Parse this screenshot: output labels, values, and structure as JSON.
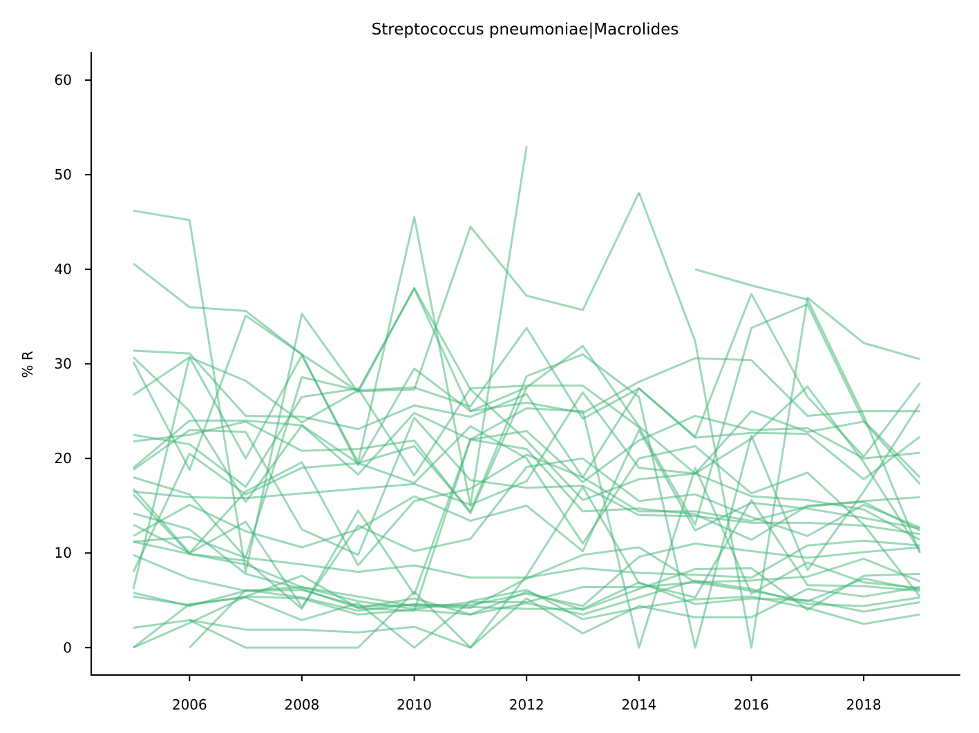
{
  "chart_data": {
    "type": "line",
    "title": "Streptococcus pneumoniae|Macrolides",
    "xlabel": "",
    "ylabel": "% R",
    "xlim": [
      2004.25,
      2019.72
    ],
    "ylim": [
      -2.9,
      63.0
    ],
    "xticks": [
      "2006",
      "2008",
      "2010",
      "2012",
      "2014",
      "2016",
      "2018"
    ],
    "yticks": [
      "0",
      "10",
      "20",
      "30",
      "40",
      "50",
      "60"
    ],
    "grid": false,
    "legend": "none",
    "line_color": "#3cb371",
    "line_alpha": 0.5,
    "series": [
      {
        "x": [
          2005,
          2006,
          2007,
          2008,
          2009,
          2010,
          2011,
          2012
        ],
        "values": [
          46.2,
          45.2,
          8.0,
          35.3,
          27.0,
          38.0,
          25.0,
          27.5
        ]
      },
      {
        "x": [
          2005,
          2006,
          2007,
          2008,
          2009,
          2010,
          2011,
          2012
        ],
        "values": [
          6.2,
          30.7,
          20.0,
          30.9,
          19.6,
          45.5,
          15.0,
          53.0
        ]
      },
      {
        "x": [
          2005,
          2006,
          2007,
          2008,
          2009,
          2010,
          2011,
          2012,
          2013,
          2014
        ],
        "values": [
          40.6,
          36.0,
          35.6,
          31.0,
          27.1,
          27.3,
          44.5,
          37.2,
          35.7,
          48.1
        ]
      },
      {
        "x": [
          2014,
          2015,
          2016,
          2017,
          2018,
          2019
        ],
        "values": [
          48.1,
          32.4,
          0.0,
          37.0,
          32.2,
          30.5
        ]
      },
      {
        "x": [
          2015,
          2016,
          2017,
          2018,
          2019
        ],
        "values": [
          40.0,
          38.3,
          36.8,
          24.5,
          10.0
        ]
      },
      {
        "x": [
          2005,
          2006,
          2007,
          2008,
          2009,
          2010,
          2011,
          2012,
          2013,
          2014,
          2015,
          2016,
          2017,
          2018,
          2019
        ],
        "values": [
          31.4,
          31.1,
          24.5,
          24.4,
          23.1,
          25.6,
          24.4,
          26.8,
          18.0,
          27.4,
          22.2,
          22.7,
          22.6,
          17.8,
          22.3
        ]
      },
      {
        "x": [
          2005,
          2006,
          2007,
          2008,
          2009,
          2010,
          2011,
          2012,
          2013,
          2014,
          2015,
          2016,
          2017,
          2018,
          2019
        ],
        "values": [
          30.2,
          18.8,
          35.1,
          31.0,
          19.3,
          29.5,
          25.0,
          25.9,
          24.8,
          28.1,
          30.6,
          30.4,
          24.5,
          25.0,
          25.0
        ]
      },
      {
        "x": [
          2005,
          2006,
          2007,
          2008,
          2009,
          2010,
          2011,
          2012,
          2013,
          2014,
          2015,
          2016,
          2017,
          2018,
          2019
        ],
        "values": [
          26.7,
          30.7,
          28.2,
          23.8,
          27.2,
          27.5,
          25.5,
          33.8,
          24.2,
          27.4,
          22.3,
          37.4,
          26.5,
          20.2,
          28.0
        ]
      },
      {
        "x": [
          2005,
          2006,
          2007,
          2008,
          2009,
          2010,
          2011,
          2012,
          2013,
          2014,
          2015,
          2016,
          2017,
          2018,
          2019
        ],
        "values": [
          22.5,
          21.5,
          17.0,
          26.5,
          27.4,
          18.2,
          27.4,
          27.7,
          27.7,
          23.3,
          13.0,
          33.8,
          36.3,
          24.0,
          18.0
        ]
      },
      {
        "x": [
          2005,
          2006,
          2007,
          2008,
          2009,
          2010,
          2011,
          2012,
          2013,
          2014,
          2015,
          2016,
          2017,
          2018,
          2019
        ],
        "values": [
          21.8,
          22.5,
          23.9,
          20.8,
          21.0,
          21.9,
          14.2,
          27.5,
          31.9,
          23.4,
          18.4,
          25.0,
          22.8,
          23.9,
          17.3
        ]
      },
      {
        "x": [
          2005,
          2006,
          2007,
          2008,
          2009,
          2010,
          2011,
          2012,
          2013,
          2014,
          2015,
          2016,
          2017,
          2018,
          2019
        ],
        "values": [
          19.0,
          24.0,
          24.0,
          23.5,
          18.3,
          24.8,
          22.0,
          22.9,
          17.5,
          21.9,
          24.5,
          23.0,
          23.2,
          20.0,
          20.6
        ]
      },
      {
        "x": [
          2005,
          2006,
          2007,
          2008,
          2009,
          2010,
          2011,
          2012,
          2013,
          2014,
          2015,
          2016,
          2017,
          2018,
          2019
        ],
        "values": [
          18.8,
          23.0,
          22.8,
          12.5,
          9.8,
          24.3,
          17.7,
          16.9,
          17.1,
          14.0,
          13.9,
          13.2,
          13.2,
          12.9,
          12.0
        ]
      },
      {
        "x": [
          2005,
          2006,
          2007,
          2008,
          2009,
          2010,
          2011,
          2012,
          2013,
          2014,
          2015,
          2016,
          2017,
          2018,
          2019
        ],
        "values": [
          18.0,
          16.2,
          9.5,
          28.6,
          27.2,
          38.0,
          27.3,
          21.9,
          15.6,
          17.8,
          18.4,
          22.1,
          27.6,
          19.6,
          10.2
        ]
      },
      {
        "x": [
          2005,
          2006,
          2007,
          2008,
          2009,
          2010,
          2011,
          2012,
          2013,
          2014,
          2015,
          2016,
          2017,
          2018,
          2019
        ],
        "values": [
          16.8,
          10.0,
          16.5,
          19.6,
          8.7,
          15.5,
          16.8,
          20.4,
          18.0,
          14.4,
          14.4,
          13.4,
          14.9,
          15.5,
          15.9
        ]
      },
      {
        "x": [
          2005,
          2006,
          2007,
          2008,
          2009,
          2010,
          2011,
          2012,
          2013,
          2014,
          2015,
          2016,
          2017,
          2018,
          2019
        ],
        "values": [
          16.5,
          15.9,
          15.8,
          16.3,
          16.8,
          17.3,
          15.1,
          17.6,
          27.0,
          19.0,
          18.4,
          16.0,
          15.6,
          14.6,
          11.4
        ]
      },
      {
        "x": [
          2005,
          2006,
          2007,
          2008,
          2009,
          2010,
          2011,
          2012,
          2013,
          2014,
          2015,
          2016,
          2017,
          2018,
          2019
        ],
        "values": [
          14.2,
          12.5,
          7.8,
          6.2,
          4.2,
          3.9,
          22.0,
          21.0,
          14.4,
          14.7,
          14.1,
          11.4,
          15.0,
          15.4,
          12.4
        ]
      },
      {
        "x": [
          2005,
          2006,
          2007,
          2008,
          2009,
          2010,
          2011,
          2012,
          2013,
          2014,
          2015,
          2016,
          2017,
          2018,
          2019
        ],
        "values": [
          13.0,
          10.0,
          13.3,
          4.3,
          12.9,
          10.2,
          11.5,
          19.1,
          20.0,
          15.5,
          16.2,
          13.8,
          11.8,
          15.1,
          12.7
        ]
      },
      {
        "x": [
          2005,
          2006,
          2007,
          2008,
          2009,
          2010,
          2011,
          2012,
          2013,
          2014,
          2015,
          2016,
          2017,
          2018,
          2019
        ],
        "values": [
          11.8,
          15.1,
          12.3,
          10.6,
          12.5,
          16.0,
          13.4,
          15.0,
          10.2,
          23.0,
          12.4,
          15.3,
          14.7,
          13.7,
          12.6
        ]
      },
      {
        "x": [
          2005,
          2006,
          2007,
          2008,
          2009,
          2010,
          2011,
          2012,
          2013,
          2014,
          2015,
          2016,
          2017,
          2018,
          2019
        ],
        "values": [
          11.2,
          11.7,
          9.5,
          8.8,
          8.0,
          8.7,
          7.4,
          7.4,
          8.4,
          7.9,
          7.7,
          7.4,
          10.8,
          11.3,
          10.8
        ]
      },
      {
        "x": [
          2005,
          2006,
          2007,
          2008,
          2009,
          2010,
          2011,
          2012,
          2013,
          2014,
          2015,
          2016,
          2017,
          2018,
          2019
        ],
        "values": [
          9.8,
          7.3,
          6.0,
          6.1,
          4.4,
          4.5,
          4.5,
          5.7,
          4.4,
          9.6,
          11.0,
          10.2,
          9.5,
          10.1,
          10.6
        ]
      },
      {
        "x": [
          2005,
          2006,
          2007,
          2008,
          2009,
          2010,
          2011,
          2012,
          2013,
          2014,
          2015,
          2016,
          2017,
          2018,
          2019
        ],
        "values": [
          11.2,
          9.9,
          8.8,
          6.4,
          4.9,
          4.1,
          4.8,
          4.8,
          6.4,
          6.4,
          6.9,
          7.1,
          7.5,
          9.4,
          7.0
        ]
      },
      {
        "x": [
          2005,
          2006,
          2007,
          2008,
          2009,
          2010,
          2011,
          2012,
          2013,
          2014,
          2015,
          2016,
          2017,
          2018,
          2019
        ],
        "values": [
          5.8,
          4.4,
          6.0,
          6.4,
          5.4,
          4.4,
          4.2,
          7.3,
          9.8,
          10.6,
          6.9,
          6.0,
          4.9,
          7.3,
          6.1
        ]
      },
      {
        "x": [
          2005,
          2006,
          2007,
          2008,
          2009,
          2010,
          2011,
          2012,
          2013,
          2014,
          2015,
          2016,
          2017,
          2018,
          2019
        ],
        "values": [
          5.4,
          4.5,
          5.4,
          5.2,
          3.5,
          4.0,
          3.5,
          5.9,
          4.0,
          6.2,
          8.3,
          8.4,
          4.0,
          7.6,
          7.8
        ]
      },
      {
        "x": [
          2005,
          2006,
          2007,
          2008,
          2009,
          2010,
          2011,
          2012,
          2013,
          2014,
          2015,
          2016,
          2017,
          2018,
          2019
        ],
        "values": [
          2.1,
          2.9,
          1.9,
          1.9,
          1.6,
          2.2,
          0.0,
          5.2,
          1.5,
          4.4,
          3.2,
          3.2,
          6.2,
          5.4,
          6.4
        ]
      },
      {
        "x": [
          2005,
          2006,
          2007,
          2008,
          2009,
          2010,
          2011,
          2012,
          2013,
          2014,
          2015,
          2016,
          2017,
          2018,
          2019
        ],
        "values": [
          0.0,
          2.6,
          5.4,
          7.6,
          4.2,
          5.2,
          3.5,
          4.7,
          3.5,
          5.3,
          7.1,
          6.2,
          4.6,
          4.4,
          5.3
        ]
      },
      {
        "x": [
          2005,
          2006,
          2007,
          2008,
          2009,
          2010,
          2011,
          2012,
          2013,
          2014,
          2015,
          2016,
          2017,
          2018,
          2019
        ],
        "values": [
          0.0,
          4.6,
          5.3,
          2.9,
          4.7,
          0.0,
          4.9,
          6.1,
          3.0,
          4.2,
          5.1,
          5.4,
          4.2,
          2.5,
          3.5
        ]
      },
      {
        "x": [
          2006,
          2007,
          2008,
          2009,
          2010,
          2011,
          2012,
          2013,
          2014,
          2015,
          2016,
          2017,
          2018,
          2019
        ],
        "values": [
          0.0,
          6.1,
          5.3,
          3.9,
          4.6,
          4.3,
          4.1,
          4.1,
          6.9,
          4.6,
          5.2,
          5.0,
          3.8,
          4.8
        ]
      },
      {
        "x": [
          2006,
          2007,
          2008,
          2009,
          2010,
          2011,
          2012,
          2013,
          2014,
          2015,
          2016,
          2017,
          2018,
          2019
        ],
        "values": [
          2.9,
          0.0,
          0.0,
          0.0,
          5.9,
          0.0,
          7.6,
          17.0,
          6.8,
          5.3,
          15.6,
          6.6,
          6.5,
          6.0
        ]
      },
      {
        "x": [
          2005,
          2006,
          2007,
          2008,
          2009,
          2010,
          2011,
          2012,
          2013,
          2014,
          2015,
          2016,
          2017,
          2018,
          2019
        ],
        "values": [
          16.2,
          9.9,
          9.2,
          4.1,
          14.5,
          5.6,
          22.0,
          25.3,
          25.0,
          0.0,
          19.0,
          5.7,
          9.0,
          6.9,
          6.3
        ]
      },
      {
        "x": [
          2005,
          2006,
          2007,
          2008,
          2009,
          2010,
          2011,
          2012,
          2013,
          2014,
          2015,
          2016,
          2017,
          2018,
          2019
        ],
        "values": [
          8.0,
          20.5,
          16.2,
          19.0,
          19.5,
          21.3,
          14.4,
          28.7,
          31.0,
          26.5,
          0.0,
          22.4,
          8.2,
          16.5,
          25.8
        ]
      },
      {
        "x": [
          2005,
          2006,
          2007,
          2008,
          2009,
          2010,
          2011,
          2012,
          2013,
          2014,
          2015,
          2016,
          2017,
          2018,
          2019
        ],
        "values": [
          30.7,
          25.0,
          15.4,
          23.5,
          19.5,
          17.4,
          23.4,
          20.0,
          11.0,
          20.0,
          21.3,
          16.3,
          18.5,
          13.0,
          5.4
        ]
      }
    ]
  }
}
